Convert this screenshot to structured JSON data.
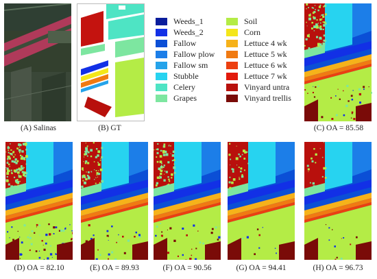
{
  "captions": {
    "a": "(A) Salinas",
    "b": "(B) GT",
    "c": "(C) OA = 85.58",
    "d": "(D) OA = 82.10",
    "e": "(E) OA = 89.93",
    "f": "(F) OA = 90.56",
    "g": "(G) OA = 94.41",
    "h": "(H) OA = 96.73"
  },
  "legend": {
    "col1": [
      {
        "label": "Weeds_1",
        "color": "#0a1d9c"
      },
      {
        "label": "Weeds_2",
        "color": "#1230e6"
      },
      {
        "label": "Fallow",
        "color": "#0b4fd6"
      },
      {
        "label": "Fallow plow",
        "color": "#1c7ee8"
      },
      {
        "label": "Fallow sm",
        "color": "#25a3ea"
      },
      {
        "label": "Stubble",
        "color": "#27d3f0"
      },
      {
        "label": "Celery",
        "color": "#4ee4c4"
      },
      {
        "label": "Grapes",
        "color": "#7de6a0"
      }
    ],
    "col2": [
      {
        "label": "Soil",
        "color": "#b4ec46"
      },
      {
        "label": "Corn",
        "color": "#f4e61a"
      },
      {
        "label": "Lettuce 4 wk",
        "color": "#f6b21a"
      },
      {
        "label": "Lettuce 5 wk",
        "color": "#f07a12"
      },
      {
        "label": "Lettuce 6 wk",
        "color": "#ec3f10"
      },
      {
        "label": "Lettuce 7 wk",
        "color": "#e21a0c"
      },
      {
        "label": "Vinyard untra",
        "color": "#b8100c"
      },
      {
        "label": "Vinyard trellis",
        "color": "#7a0b08"
      }
    ]
  }
}
